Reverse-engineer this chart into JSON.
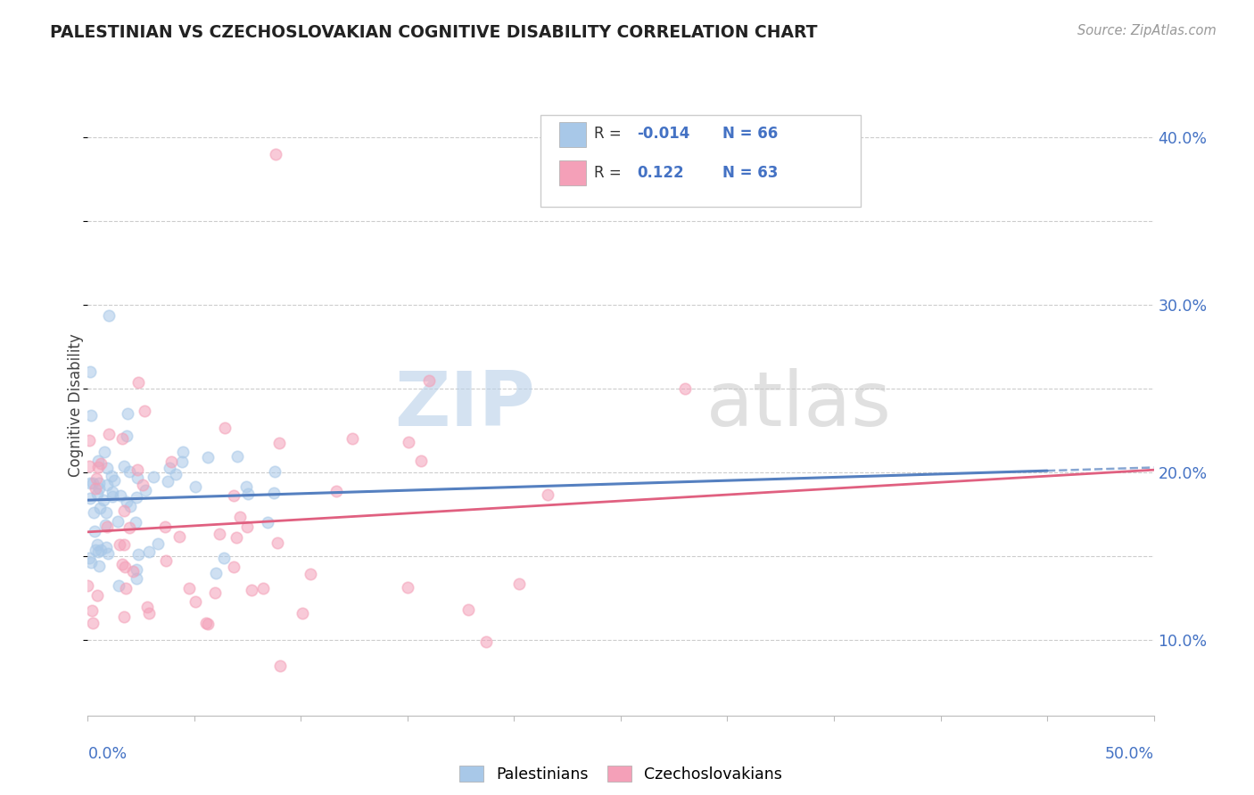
{
  "title": "PALESTINIAN VS CZECHOSLOVAKIAN COGNITIVE DISABILITY CORRELATION CHART",
  "source": "Source: ZipAtlas.com",
  "ylabel": "Cognitive Disability",
  "xmin": 0.0,
  "xmax": 0.5,
  "ymin": 0.055,
  "ymax": 0.425,
  "yticks": [
    0.1,
    0.2,
    0.3,
    0.4
  ],
  "ytick_labels": [
    "10.0%",
    "20.0%",
    "30.0%",
    "40.0%"
  ],
  "color_blue": "#A8C8E8",
  "color_pink": "#F4A0B8",
  "line_blue": "#5580C0",
  "line_pink": "#E06080",
  "background": "#FFFFFF",
  "legend_items": [
    {
      "color": "#A8C8E8",
      "r": "-0.014",
      "n": "66"
    },
    {
      "color": "#F4A0B8",
      "r": "0.122",
      "n": "63"
    }
  ],
  "watermark_zip": "ZIP",
  "watermark_atlas": "atlas",
  "bottom_legend": [
    "Palestinians",
    "Czechoslovakians"
  ]
}
